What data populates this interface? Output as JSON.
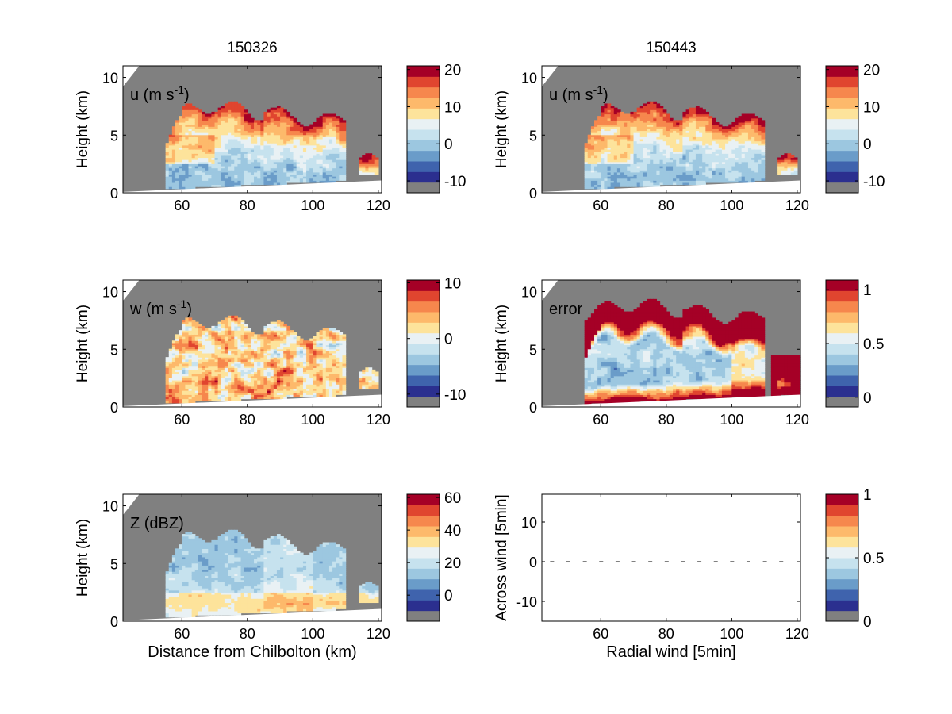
{
  "figure": {
    "column_titles": [
      "150326",
      "150443"
    ]
  },
  "colormap": [
    "#808080",
    "#2b2f8f",
    "#3f63ad",
    "#6a9cc9",
    "#9cc7e0",
    "#c6e2ee",
    "#e9f1f4",
    "#fde39b",
    "#fdb96b",
    "#f6874d",
    "#e0452f",
    "#a50026"
  ],
  "colors": {
    "missing": "#808080",
    "background": "#ffffff",
    "below_ground": "#ffffff"
  },
  "chart_data": [
    {
      "type": "heatmap",
      "panel": "top-left",
      "title": "150326",
      "label": "u (m s",
      "label_sup": "-1",
      "label_tail": ")",
      "xlabel": "",
      "ylabel": "Height (km)",
      "xlim": [
        42,
        121
      ],
      "ylim": [
        0,
        11
      ],
      "x_ticks": [
        "60",
        "80",
        "100",
        "120"
      ],
      "y_ticks": [
        "0",
        "5",
        "10"
      ],
      "colorbar": {
        "range": [
          -13.2,
          21
        ],
        "ticks": [
          "20",
          "10",
          "0",
          "-10"
        ],
        "tick_values": [
          20,
          10,
          0,
          -10
        ]
      }
    },
    {
      "type": "heatmap",
      "panel": "top-right",
      "title": "150443",
      "label": "u (m s",
      "label_sup": "-1",
      "label_tail": ")",
      "xlabel": "",
      "ylabel": "Height (km)",
      "xlim": [
        42,
        121
      ],
      "ylim": [
        0,
        11
      ],
      "x_ticks": [
        "60",
        "80",
        "100",
        "120"
      ],
      "y_ticks": [
        "0",
        "5",
        "10"
      ],
      "colorbar": {
        "range": [
          -13.2,
          21
        ],
        "ticks": [
          "20",
          "10",
          "0",
          "-10"
        ],
        "tick_values": [
          20,
          10,
          0,
          -10
        ]
      }
    },
    {
      "type": "heatmap",
      "panel": "middle-left",
      "label": "w (m s",
      "label_sup": "-1",
      "label_tail": ")",
      "xlabel": "",
      "ylabel": "Height (km)",
      "xlim": [
        42,
        121
      ],
      "ylim": [
        0,
        11
      ],
      "x_ticks": [
        "60",
        "80",
        "100",
        "120"
      ],
      "y_ticks": [
        "0",
        "5",
        "10"
      ],
      "colorbar": {
        "range": [
          -12.3,
          10.5
        ],
        "ticks": [
          "10",
          "0",
          "-10"
        ],
        "tick_values": [
          10,
          0,
          -10
        ]
      }
    },
    {
      "type": "heatmap",
      "panel": "middle-right",
      "label": "error",
      "xlabel": "",
      "ylabel": "Height (km)",
      "xlim": [
        42,
        121
      ],
      "ylim": [
        0,
        11
      ],
      "x_ticks": [
        "60",
        "80",
        "100",
        "120"
      ],
      "y_ticks": [
        "0",
        "5",
        "10"
      ],
      "colorbar": {
        "range": [
          -0.09,
          1.09
        ],
        "ticks": [
          "1",
          "0.5",
          "0"
        ],
        "tick_values": [
          1,
          0.5,
          0
        ]
      }
    },
    {
      "type": "heatmap",
      "panel": "bottom-left",
      "label": "Z (dBZ)",
      "xlabel": "Distance from Chilbolton (km)",
      "ylabel": "Height (km)",
      "xlim": [
        42,
        121
      ],
      "ylim": [
        0,
        11
      ],
      "x_ticks": [
        "60",
        "80",
        "100",
        "120"
      ],
      "y_ticks": [
        "0",
        "5",
        "10"
      ],
      "colorbar": {
        "range": [
          -16,
          62
        ],
        "ticks": [
          "60",
          "40",
          "20",
          "0"
        ],
        "tick_values": [
          60,
          40,
          20,
          0
        ]
      }
    },
    {
      "type": "scatter",
      "panel": "bottom-right",
      "xlabel": "Radial wind [5min]",
      "ylabel": "Across wind [5min]",
      "xlim": [
        42,
        121
      ],
      "ylim": [
        -15,
        17
      ],
      "x_ticks": [
        "60",
        "80",
        "100",
        "120"
      ],
      "y_ticks": [
        "10",
        "0",
        "-10"
      ],
      "x": [
        45,
        50,
        55,
        60,
        65,
        70,
        75,
        80,
        85,
        90,
        95,
        100,
        105,
        110,
        115
      ],
      "y": [
        0,
        0,
        0,
        0,
        0,
        0,
        0,
        0,
        0,
        0,
        0,
        0,
        0,
        0,
        0
      ],
      "colorbar": {
        "range": [
          0,
          1
        ],
        "ticks": [
          "1",
          "0.5",
          "0"
        ],
        "tick_values": [
          1,
          0.5,
          0
        ]
      }
    }
  ]
}
